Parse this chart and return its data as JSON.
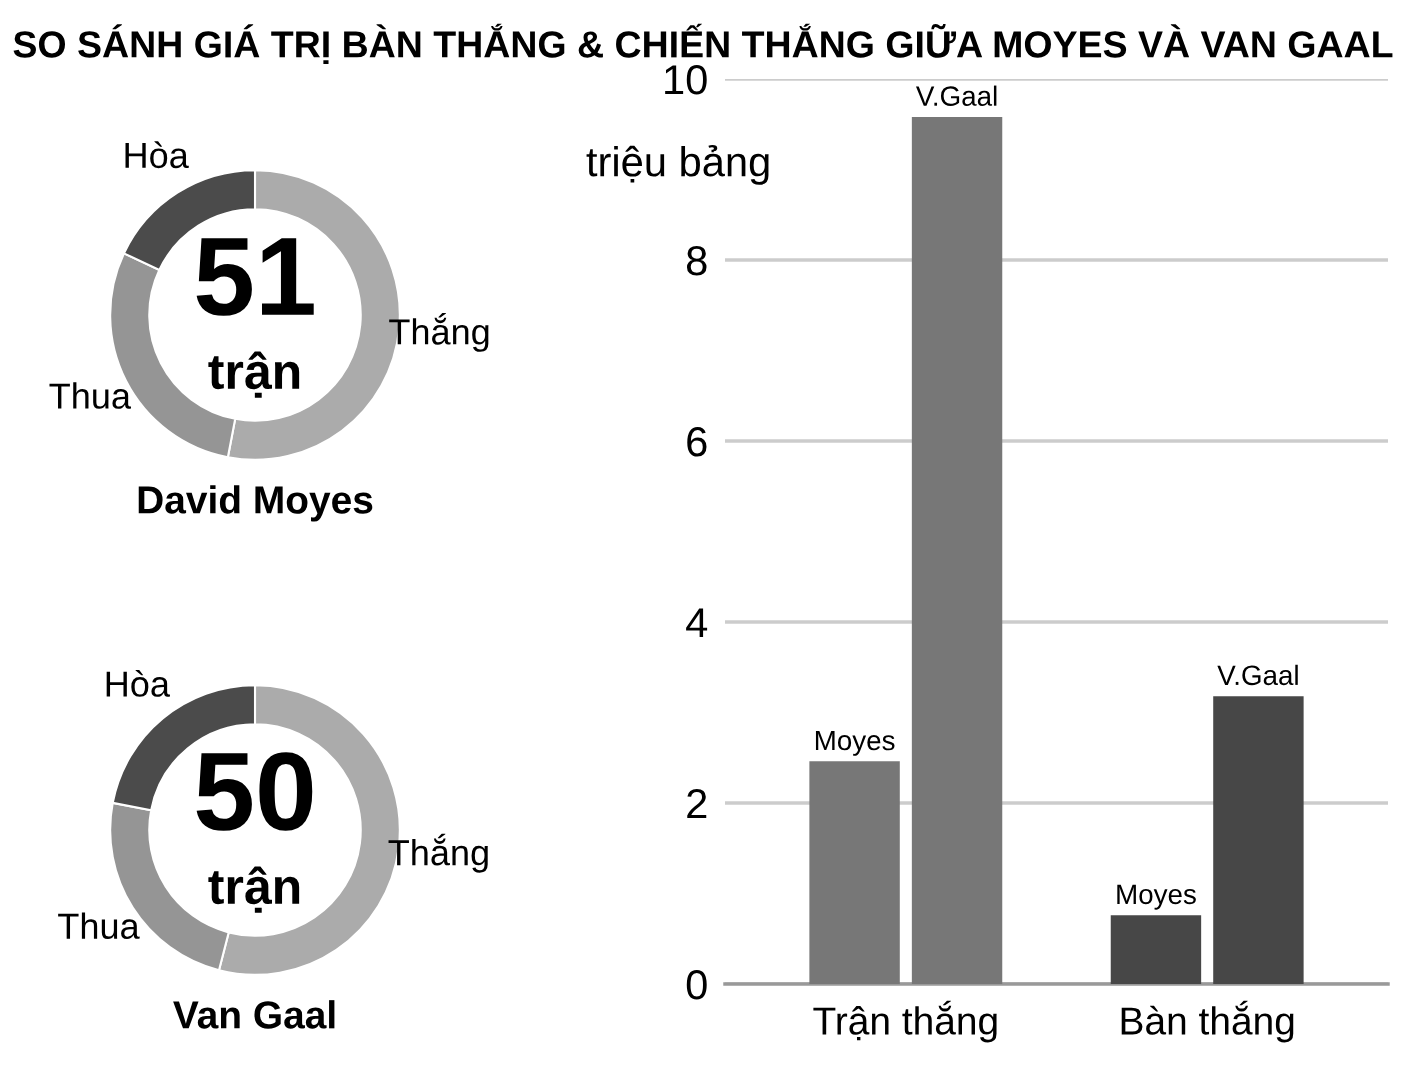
{
  "chart_data": [
    {
      "type": "donut",
      "title": "SO SÁNH GIÁ TRỊ BÀN THẮNG & CHIẾN THẮNG GIỮA MOYES VÀ VAN GAAL",
      "xlabel": "David Moyes",
      "annotations": [
        "51",
        "trận"
      ],
      "categories": [
        "Thắng",
        "Thua",
        "Hòa"
      ],
      "values": [
        53,
        29,
        18
      ],
      "colors": [
        "#ababab",
        "#959595",
        "#4b4b4b"
      ]
    },
    {
      "type": "donut",
      "xlabel": "Van Gaal",
      "annotations": [
        "50",
        "trận"
      ],
      "categories": [
        "Thắng",
        "Thua",
        "Hòa"
      ],
      "values": [
        54,
        24,
        22
      ],
      "colors": [
        "#ababab",
        "#959595",
        "#4b4b4b"
      ]
    },
    {
      "type": "bar",
      "ylabel": "triệu bảng",
      "categories": [
        "Trận thắng",
        "Bàn thắng"
      ],
      "series": [
        {
          "name": "Moyes",
          "colors": [
            "#777777",
            "#474747"
          ],
          "values": [
            2.46,
            0.76
          ]
        },
        {
          "name": "V.Gaal",
          "colors": [
            "#777777",
            "#474747"
          ],
          "values": [
            9.58,
            3.18
          ]
        }
      ],
      "ylim": [
        0,
        10
      ],
      "yticks": [
        0,
        2,
        4,
        6,
        8,
        10
      ],
      "grid": "y",
      "legend": false
    }
  ]
}
